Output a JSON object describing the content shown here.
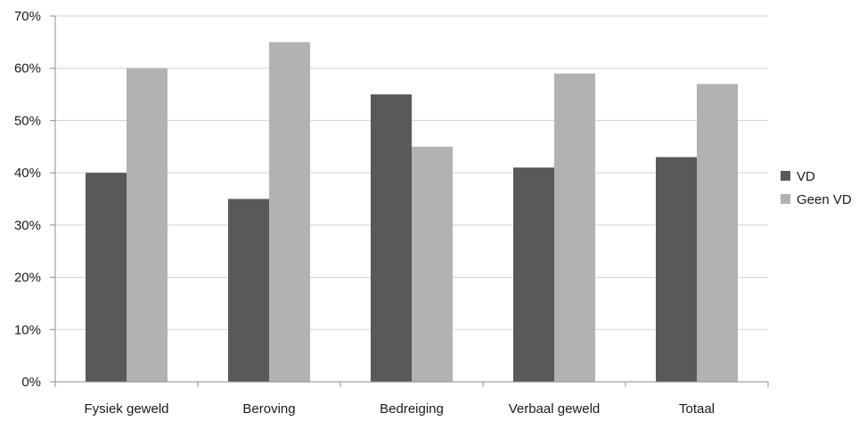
{
  "chart_data": {
    "type": "bar",
    "title": "",
    "xlabel": "",
    "ylabel": "",
    "categories": [
      "Fysiek geweld",
      "Beroving",
      "Bedreiging",
      "Verbaal geweld",
      "Totaal"
    ],
    "series": [
      {
        "name": "VD",
        "values": [
          40,
          35,
          55,
          41,
          43
        ],
        "color": "#595959"
      },
      {
        "name": "Geen VD",
        "values": [
          60,
          65,
          45,
          59,
          57
        ],
        "color": "#b2b2b2"
      }
    ],
    "ylim": [
      0,
      70
    ],
    "y_ticks": [
      0,
      10,
      20,
      30,
      40,
      50,
      60,
      70
    ],
    "y_tick_labels": [
      "0%",
      "10%",
      "20%",
      "30%",
      "40%",
      "50%",
      "60%",
      "70%"
    ],
    "grid": true,
    "legend_position": "right"
  }
}
